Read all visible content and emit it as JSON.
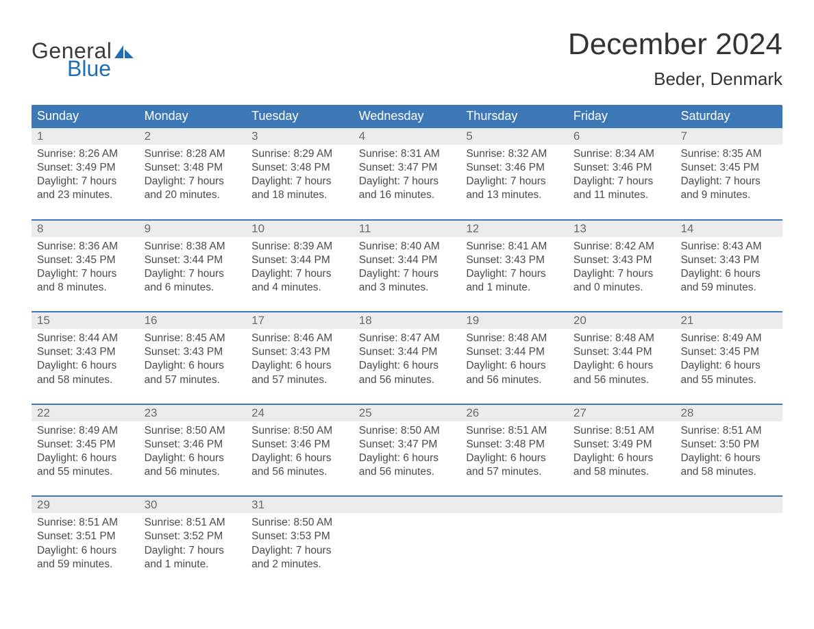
{
  "brand": {
    "line1": "General",
    "line2": "Blue"
  },
  "title": "December 2024",
  "location": "Beder, Denmark",
  "colors": {
    "header_bg": "#3d78b6",
    "header_text": "#ffffff",
    "daynum_bg": "#ececec",
    "daynum_text": "#6b6b6b",
    "body_text": "#4a4a4a",
    "week_divider": "#3d78b6",
    "logo_blue": "#1e6db5",
    "page_bg": "#ffffff"
  },
  "day_headers": [
    "Sunday",
    "Monday",
    "Tuesday",
    "Wednesday",
    "Thursday",
    "Friday",
    "Saturday"
  ],
  "weeks": [
    [
      {
        "n": "1",
        "sunrise": "Sunrise: 8:26 AM",
        "sunset": "Sunset: 3:49 PM",
        "dl1": "Daylight: 7 hours",
        "dl2": "and 23 minutes."
      },
      {
        "n": "2",
        "sunrise": "Sunrise: 8:28 AM",
        "sunset": "Sunset: 3:48 PM",
        "dl1": "Daylight: 7 hours",
        "dl2": "and 20 minutes."
      },
      {
        "n": "3",
        "sunrise": "Sunrise: 8:29 AM",
        "sunset": "Sunset: 3:48 PM",
        "dl1": "Daylight: 7 hours",
        "dl2": "and 18 minutes."
      },
      {
        "n": "4",
        "sunrise": "Sunrise: 8:31 AM",
        "sunset": "Sunset: 3:47 PM",
        "dl1": "Daylight: 7 hours",
        "dl2": "and 16 minutes."
      },
      {
        "n": "5",
        "sunrise": "Sunrise: 8:32 AM",
        "sunset": "Sunset: 3:46 PM",
        "dl1": "Daylight: 7 hours",
        "dl2": "and 13 minutes."
      },
      {
        "n": "6",
        "sunrise": "Sunrise: 8:34 AM",
        "sunset": "Sunset: 3:46 PM",
        "dl1": "Daylight: 7 hours",
        "dl2": "and 11 minutes."
      },
      {
        "n": "7",
        "sunrise": "Sunrise: 8:35 AM",
        "sunset": "Sunset: 3:45 PM",
        "dl1": "Daylight: 7 hours",
        "dl2": "and 9 minutes."
      }
    ],
    [
      {
        "n": "8",
        "sunrise": "Sunrise: 8:36 AM",
        "sunset": "Sunset: 3:45 PM",
        "dl1": "Daylight: 7 hours",
        "dl2": "and 8 minutes."
      },
      {
        "n": "9",
        "sunrise": "Sunrise: 8:38 AM",
        "sunset": "Sunset: 3:44 PM",
        "dl1": "Daylight: 7 hours",
        "dl2": "and 6 minutes."
      },
      {
        "n": "10",
        "sunrise": "Sunrise: 8:39 AM",
        "sunset": "Sunset: 3:44 PM",
        "dl1": "Daylight: 7 hours",
        "dl2": "and 4 minutes."
      },
      {
        "n": "11",
        "sunrise": "Sunrise: 8:40 AM",
        "sunset": "Sunset: 3:44 PM",
        "dl1": "Daylight: 7 hours",
        "dl2": "and 3 minutes."
      },
      {
        "n": "12",
        "sunrise": "Sunrise: 8:41 AM",
        "sunset": "Sunset: 3:43 PM",
        "dl1": "Daylight: 7 hours",
        "dl2": "and 1 minute."
      },
      {
        "n": "13",
        "sunrise": "Sunrise: 8:42 AM",
        "sunset": "Sunset: 3:43 PM",
        "dl1": "Daylight: 7 hours",
        "dl2": "and 0 minutes."
      },
      {
        "n": "14",
        "sunrise": "Sunrise: 8:43 AM",
        "sunset": "Sunset: 3:43 PM",
        "dl1": "Daylight: 6 hours",
        "dl2": "and 59 minutes."
      }
    ],
    [
      {
        "n": "15",
        "sunrise": "Sunrise: 8:44 AM",
        "sunset": "Sunset: 3:43 PM",
        "dl1": "Daylight: 6 hours",
        "dl2": "and 58 minutes."
      },
      {
        "n": "16",
        "sunrise": "Sunrise: 8:45 AM",
        "sunset": "Sunset: 3:43 PM",
        "dl1": "Daylight: 6 hours",
        "dl2": "and 57 minutes."
      },
      {
        "n": "17",
        "sunrise": "Sunrise: 8:46 AM",
        "sunset": "Sunset: 3:43 PM",
        "dl1": "Daylight: 6 hours",
        "dl2": "and 57 minutes."
      },
      {
        "n": "18",
        "sunrise": "Sunrise: 8:47 AM",
        "sunset": "Sunset: 3:44 PM",
        "dl1": "Daylight: 6 hours",
        "dl2": "and 56 minutes."
      },
      {
        "n": "19",
        "sunrise": "Sunrise: 8:48 AM",
        "sunset": "Sunset: 3:44 PM",
        "dl1": "Daylight: 6 hours",
        "dl2": "and 56 minutes."
      },
      {
        "n": "20",
        "sunrise": "Sunrise: 8:48 AM",
        "sunset": "Sunset: 3:44 PM",
        "dl1": "Daylight: 6 hours",
        "dl2": "and 56 minutes."
      },
      {
        "n": "21",
        "sunrise": "Sunrise: 8:49 AM",
        "sunset": "Sunset: 3:45 PM",
        "dl1": "Daylight: 6 hours",
        "dl2": "and 55 minutes."
      }
    ],
    [
      {
        "n": "22",
        "sunrise": "Sunrise: 8:49 AM",
        "sunset": "Sunset: 3:45 PM",
        "dl1": "Daylight: 6 hours",
        "dl2": "and 55 minutes."
      },
      {
        "n": "23",
        "sunrise": "Sunrise: 8:50 AM",
        "sunset": "Sunset: 3:46 PM",
        "dl1": "Daylight: 6 hours",
        "dl2": "and 56 minutes."
      },
      {
        "n": "24",
        "sunrise": "Sunrise: 8:50 AM",
        "sunset": "Sunset: 3:46 PM",
        "dl1": "Daylight: 6 hours",
        "dl2": "and 56 minutes."
      },
      {
        "n": "25",
        "sunrise": "Sunrise: 8:50 AM",
        "sunset": "Sunset: 3:47 PM",
        "dl1": "Daylight: 6 hours",
        "dl2": "and 56 minutes."
      },
      {
        "n": "26",
        "sunrise": "Sunrise: 8:51 AM",
        "sunset": "Sunset: 3:48 PM",
        "dl1": "Daylight: 6 hours",
        "dl2": "and 57 minutes."
      },
      {
        "n": "27",
        "sunrise": "Sunrise: 8:51 AM",
        "sunset": "Sunset: 3:49 PM",
        "dl1": "Daylight: 6 hours",
        "dl2": "and 58 minutes."
      },
      {
        "n": "28",
        "sunrise": "Sunrise: 8:51 AM",
        "sunset": "Sunset: 3:50 PM",
        "dl1": "Daylight: 6 hours",
        "dl2": "and 58 minutes."
      }
    ],
    [
      {
        "n": "29",
        "sunrise": "Sunrise: 8:51 AM",
        "sunset": "Sunset: 3:51 PM",
        "dl1": "Daylight: 6 hours",
        "dl2": "and 59 minutes."
      },
      {
        "n": "30",
        "sunrise": "Sunrise: 8:51 AM",
        "sunset": "Sunset: 3:52 PM",
        "dl1": "Daylight: 7 hours",
        "dl2": "and 1 minute."
      },
      {
        "n": "31",
        "sunrise": "Sunrise: 8:50 AM",
        "sunset": "Sunset: 3:53 PM",
        "dl1": "Daylight: 7 hours",
        "dl2": "and 2 minutes."
      },
      null,
      null,
      null,
      null
    ]
  ]
}
